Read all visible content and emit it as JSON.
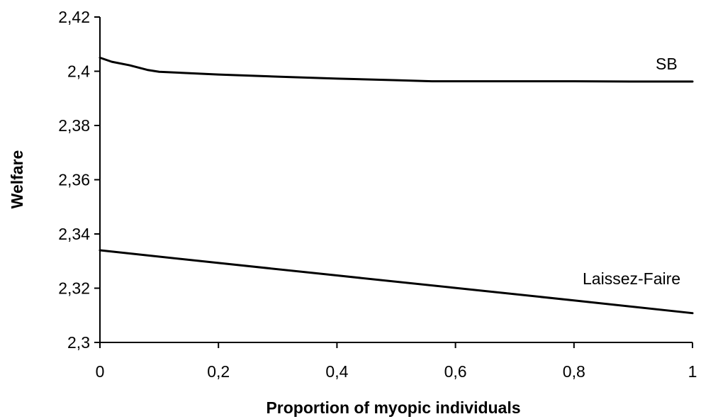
{
  "chart_data": {
    "type": "line",
    "title": "",
    "xlabel": "Proportion of myopic individuals",
    "ylabel": "Welfare",
    "xlim": [
      0,
      1
    ],
    "ylim": [
      2.3,
      2.42
    ],
    "x_ticks": [
      0,
      0.2,
      0.4,
      0.6,
      0.8,
      1
    ],
    "x_tick_labels": [
      "0",
      "0,2",
      "0,4",
      "0,6",
      "0,8",
      "1"
    ],
    "y_ticks": [
      2.3,
      2.32,
      2.34,
      2.36,
      2.38,
      2.4,
      2.42
    ],
    "y_tick_labels": [
      "2,3",
      "2,32",
      "2,34",
      "2,36",
      "2,38",
      "2,4",
      "2,42"
    ],
    "grid": false,
    "legend": "none",
    "series": [
      {
        "name": "SB",
        "x": [
          0,
          0.02,
          0.05,
          0.08,
          0.1,
          0.2,
          0.3,
          0.4,
          0.5,
          0.56,
          0.6,
          0.7,
          0.8,
          0.9,
          1.0
        ],
        "values": [
          2.405,
          2.4035,
          2.4022,
          2.4005,
          2.3998,
          2.3988,
          2.398,
          2.3973,
          2.3967,
          2.3963,
          2.3963,
          2.3963,
          2.3963,
          2.3962,
          2.3962
        ]
      },
      {
        "name": "Laissez-Faire",
        "x": [
          0,
          0.2,
          0.4,
          0.6,
          0.8,
          1.0
        ],
        "values": [
          2.334,
          2.3293,
          2.3247,
          2.3201,
          2.3155,
          2.3108
        ]
      }
    ]
  }
}
